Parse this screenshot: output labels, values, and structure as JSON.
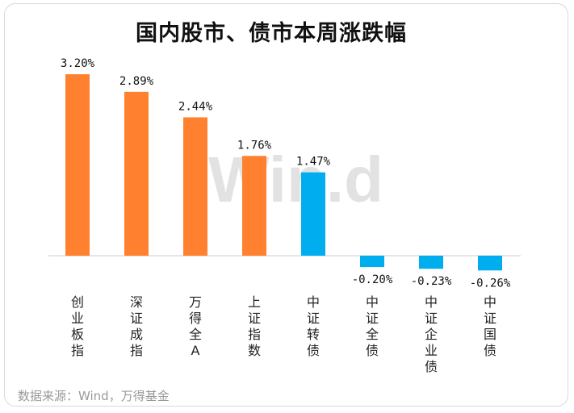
{
  "title": "国内股市、债市本周涨跌幅",
  "source": "数据来源：Wind，万得基金",
  "watermark": "Win.d",
  "colors": {
    "positive_equity": "#ff8130",
    "bond": "#00aef0",
    "axis": "#cccccc"
  },
  "chart_data": {
    "type": "bar",
    "title": "国内股市、债市本周涨跌幅",
    "categories": [
      "创业板指",
      "深证成指",
      "万得全A",
      "上证指数",
      "中证转债",
      "中证全债",
      "中证企业债",
      "中证国债"
    ],
    "values": [
      3.2,
      2.89,
      2.44,
      1.76,
      1.47,
      -0.2,
      -0.23,
      -0.26
    ],
    "labels": [
      "3.20%",
      "2.89%",
      "2.44%",
      "1.76%",
      "1.47%",
      "-0.20%",
      "-0.23%",
      "-0.26%"
    ],
    "series_colors": [
      "#ff8130",
      "#ff8130",
      "#ff8130",
      "#ff8130",
      "#00aef0",
      "#00aef0",
      "#00aef0",
      "#00aef0"
    ],
    "unit": "%",
    "ylim": [
      -0.3,
      3.3
    ],
    "xlabel": "",
    "ylabel": ""
  }
}
